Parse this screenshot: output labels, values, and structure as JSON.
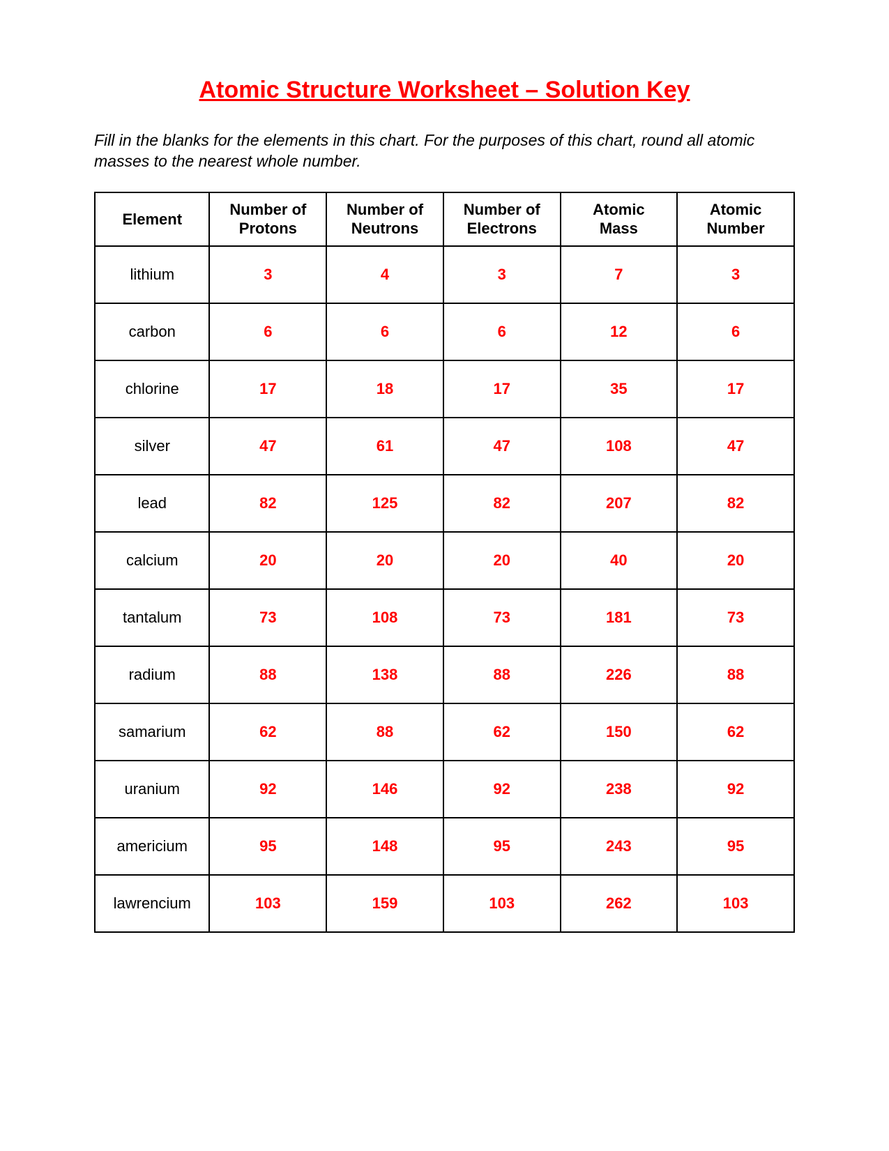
{
  "title": "Atomic Structure Worksheet – Solution Key",
  "instructions": "Fill in the blanks for the elements in this chart.  For the purposes of this chart, round all atomic masses to the nearest whole number.",
  "colors": {
    "accent": "#ff0000",
    "text": "#000000",
    "background": "#ffffff",
    "border": "#000000"
  },
  "table": {
    "headers": {
      "element": {
        "line1": "Element",
        "line2": ""
      },
      "protons": {
        "line1": "Number of",
        "line2": "Protons"
      },
      "neutrons": {
        "line1": "Number of",
        "line2": "Neutrons"
      },
      "electrons": {
        "line1": "Number of",
        "line2": "Electrons"
      },
      "mass": {
        "line1": "Atomic",
        "line2": "Mass"
      },
      "number": {
        "line1": "Atomic",
        "line2": "Number"
      }
    },
    "rows": [
      {
        "element": "lithium",
        "protons": "3",
        "neutrons": "4",
        "electrons": "3",
        "mass": "7",
        "number": "3"
      },
      {
        "element": "carbon",
        "protons": "6",
        "neutrons": "6",
        "electrons": "6",
        "mass": "12",
        "number": "6"
      },
      {
        "element": "chlorine",
        "protons": "17",
        "neutrons": "18",
        "electrons": "17",
        "mass": "35",
        "number": "17"
      },
      {
        "element": "silver",
        "protons": "47",
        "neutrons": "61",
        "electrons": "47",
        "mass": "108",
        "number": "47"
      },
      {
        "element": "lead",
        "protons": "82",
        "neutrons": "125",
        "electrons": "82",
        "mass": "207",
        "number": "82"
      },
      {
        "element": "calcium",
        "protons": "20",
        "neutrons": "20",
        "electrons": "20",
        "mass": "40",
        "number": "20"
      },
      {
        "element": "tantalum",
        "protons": "73",
        "neutrons": "108",
        "electrons": "73",
        "mass": "181",
        "number": "73"
      },
      {
        "element": "radium",
        "protons": "88",
        "neutrons": "138",
        "electrons": "88",
        "mass": "226",
        "number": "88"
      },
      {
        "element": "samarium",
        "protons": "62",
        "neutrons": "88",
        "electrons": "62",
        "mass": "150",
        "number": "62"
      },
      {
        "element": "uranium",
        "protons": "92",
        "neutrons": "146",
        "electrons": "92",
        "mass": "238",
        "number": "92"
      },
      {
        "element": "americium",
        "protons": "95",
        "neutrons": "148",
        "electrons": "95",
        "mass": "243",
        "number": "95"
      },
      {
        "element": "lawrencium",
        "protons": "103",
        "neutrons": "159",
        "electrons": "103",
        "mass": "262",
        "number": "103"
      }
    ]
  }
}
